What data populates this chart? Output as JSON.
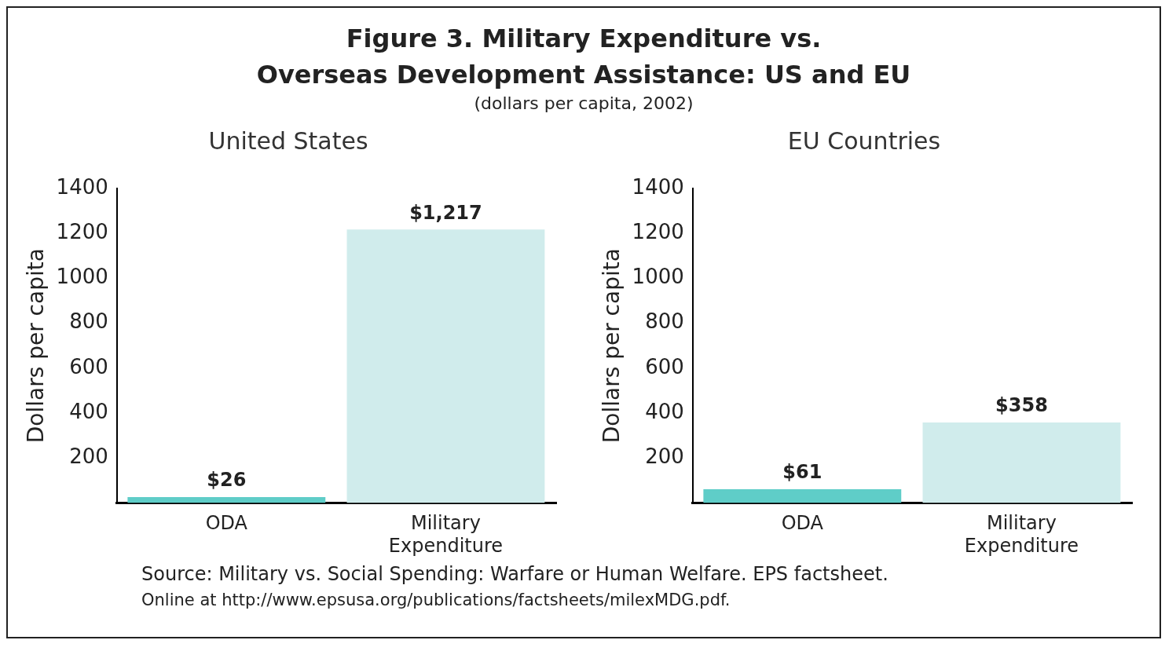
{
  "chart_data": [
    {
      "type": "other",
      "title": "Figure 3.  Military Expenditure vs.\nOverseas Development Assistance: US and EU",
      "subtitle": "(dollars per capita, 2002)"
    },
    {
      "type": "bar",
      "title": "United States",
      "ylabel": "Dollars per capita",
      "categories": [
        "ODA",
        "Military Expenditure"
      ],
      "values": [
        26,
        1217
      ],
      "colors": [
        "#5fcdc8",
        "#d0ecec"
      ],
      "ylim": [
        0,
        1400
      ],
      "yticks": [
        200,
        400,
        600,
        800,
        1000,
        1200,
        1400
      ],
      "grid": false,
      "legend": false,
      "value_labels": [
        "$26",
        "$1,217"
      ]
    },
    {
      "type": "bar",
      "title": "EU Countries",
      "ylabel": "Dollars per capita",
      "categories": [
        "ODA",
        "Military Expenditure"
      ],
      "values": [
        61,
        358
      ],
      "colors": [
        "#5fcdc8",
        "#d0ecec"
      ],
      "ylim": [
        0,
        1400
      ],
      "yticks": [
        200,
        400,
        600,
        800,
        1000,
        1200,
        1400
      ],
      "grid": false,
      "legend": false,
      "value_labels": [
        "$61",
        "$358"
      ]
    },
    {
      "type": "other",
      "annotations": [
        "Source: Military vs. Social Spending: Warfare or Human Welfare.  EPS factsheet.",
        "Online at http://www.epsusa.org/publications/factsheets/milexMDG.pdf."
      ]
    }
  ]
}
